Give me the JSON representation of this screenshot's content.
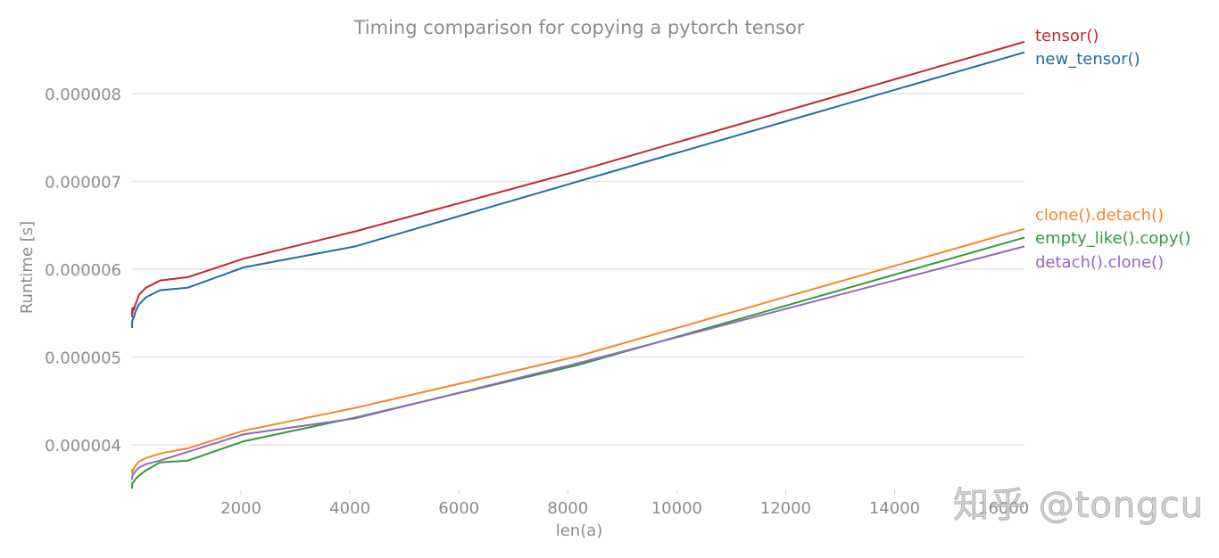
{
  "chart_data": {
    "type": "line",
    "title": "Timing comparison for copying a pytorch tensor",
    "xlabel": "len(a)",
    "ylabel": "Runtime [s]",
    "xlim": [
      0,
      16384
    ],
    "ylim": [
      3.45e-06,
      8.6e-06
    ],
    "xticks": [
      2000,
      4000,
      6000,
      8000,
      10000,
      12000,
      14000,
      16000
    ],
    "xtick_labels": [
      "2000",
      "4000",
      "6000",
      "8000",
      "10000",
      "12000",
      "14000",
      "16000"
    ],
    "yticks": [
      4e-06,
      5e-06,
      6e-06,
      7e-06,
      8e-06
    ],
    "ytick_labels": [
      "0.000004",
      "0.000005",
      "0.000006",
      "0.000007",
      "0.000008"
    ],
    "grid": "horizontal",
    "legend_position": "right, inline labels at line ends",
    "x": [
      1,
      2,
      4,
      8,
      16,
      32,
      64,
      128,
      256,
      512,
      1024,
      2048,
      4096,
      8192,
      16384
    ],
    "series": [
      {
        "name": "tensor()",
        "color": "#c0282e",
        "values": [
          5.45e-06,
          5.55e-06,
          5.52e-06,
          5.5e-06,
          5.56e-06,
          5.54e-06,
          5.6e-06,
          5.71e-06,
          5.79e-06,
          5.87e-06,
          5.91e-06,
          6.12e-06,
          6.43e-06,
          7.12e-06,
          8.59e-06
        ]
      },
      {
        "name": "new_tensor()",
        "color": "#1f6f9f",
        "values": [
          5.33e-06,
          5.4e-06,
          5.41e-06,
          5.42e-06,
          5.43e-06,
          5.45e-06,
          5.52e-06,
          5.6e-06,
          5.68e-06,
          5.76e-06,
          5.79e-06,
          6.02e-06,
          6.26e-06,
          7e-06,
          8.47e-06
        ]
      },
      {
        "name": "clone().detach()",
        "color": "#f0892a",
        "values": [
          3.67e-06,
          3.72e-06,
          3.7e-06,
          3.69e-06,
          3.71e-06,
          3.73e-06,
          3.76e-06,
          3.81e-06,
          3.85e-06,
          3.9e-06,
          3.96e-06,
          4.16e-06,
          4.42e-06,
          5.01e-06,
          6.46e-06
        ]
      },
      {
        "name": "empty_like().copy()",
        "color": "#2f9c3a",
        "values": [
          3.5e-06,
          3.55e-06,
          3.56e-06,
          3.57e-06,
          3.57e-06,
          3.58e-06,
          3.61e-06,
          3.65e-06,
          3.71e-06,
          3.8e-06,
          3.82e-06,
          4.04e-06,
          4.31e-06,
          4.91e-06,
          6.36e-06
        ]
      },
      {
        "name": "detach().clone()",
        "color": "#9467bd",
        "values": [
          3.6e-06,
          3.64e-06,
          3.64e-06,
          3.65e-06,
          3.66e-06,
          3.67e-06,
          3.7e-06,
          3.74e-06,
          3.78e-06,
          3.82e-06,
          3.92e-06,
          4.12e-06,
          4.3e-06,
          4.93e-06,
          6.26e-06
        ]
      }
    ],
    "annotations": [
      "知乎 @tongcu"
    ]
  },
  "watermark": "知乎 @tongcu"
}
